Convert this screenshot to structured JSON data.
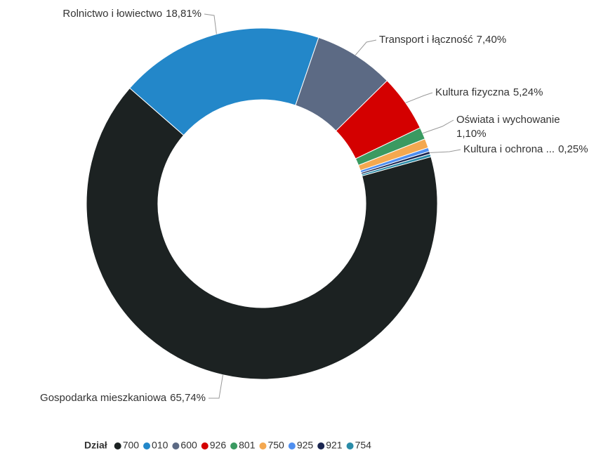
{
  "chart_data": {
    "type": "pie",
    "legend_title": "Dział",
    "categories": [
      "700",
      "010",
      "600",
      "926",
      "801",
      "750",
      "925",
      "921",
      "754"
    ],
    "labels": [
      "Gospodarka mieszkaniowa",
      "Rolnictwo i łowiectwo",
      "Transport i łączność",
      "Kultura fizyczna",
      "Oświata i wychowanie",
      null,
      null,
      "Kultura i ochrona ...",
      null
    ],
    "values": [
      65.74,
      18.81,
      7.4,
      5.24,
      1.1,
      0.85,
      0.35,
      0.25,
      0.26
    ],
    "value_labels": [
      "65,74%",
      "18,81%",
      "7,40%",
      "5,24%",
      "1,10%",
      null,
      null,
      "0,25%",
      null
    ],
    "colors": [
      "#1c2222",
      "#2387c9",
      "#5c6a84",
      "#d40000",
      "#3a9a61",
      "#f4a850",
      "#4f8ff0",
      "#1a2550",
      "#2a8ca8"
    ]
  }
}
